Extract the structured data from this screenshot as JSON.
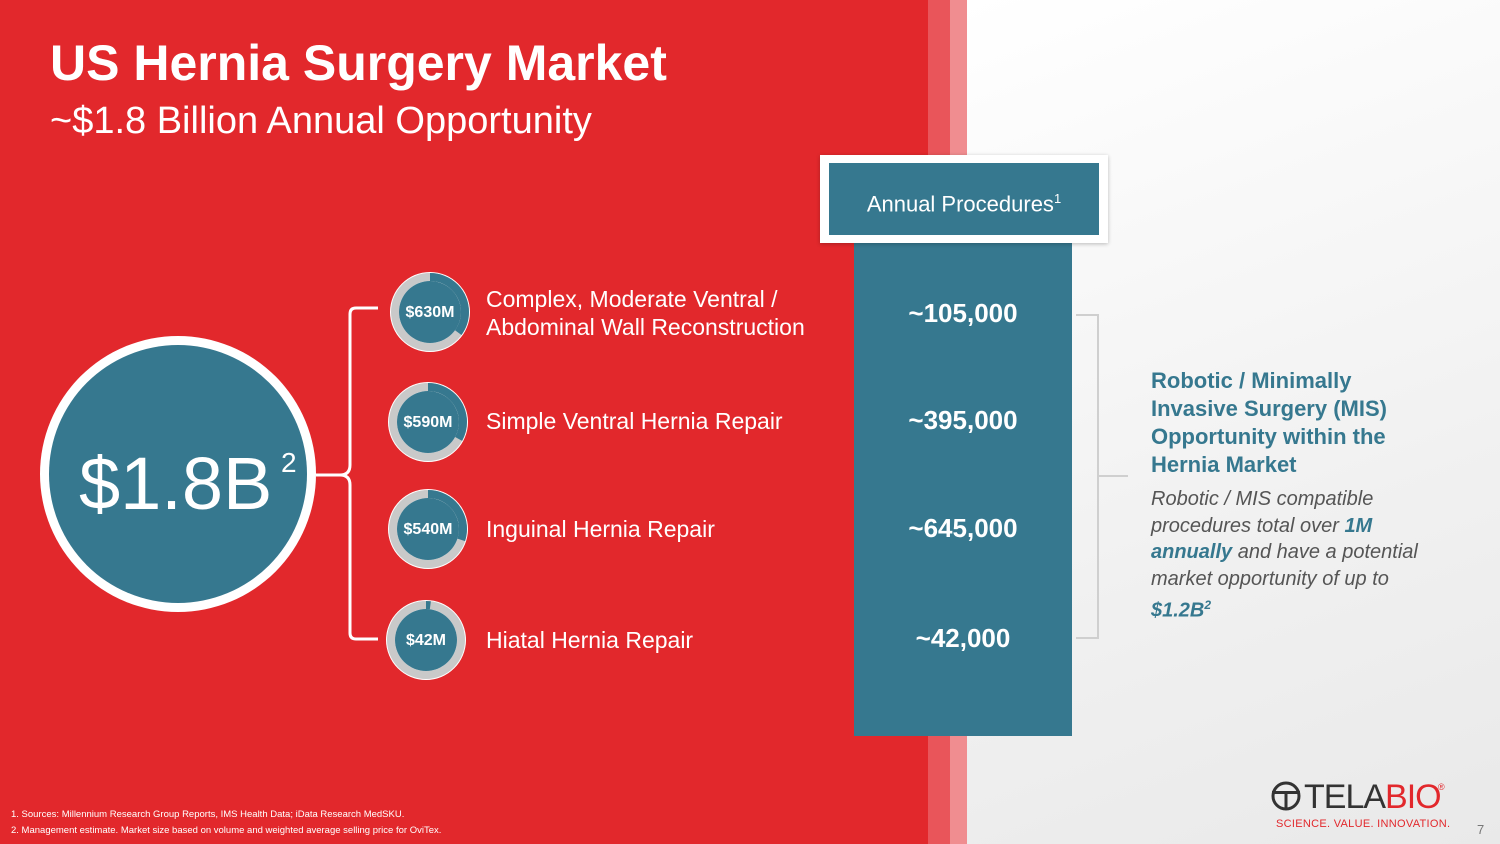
{
  "header": {
    "title": "US Hernia Surgery Market",
    "subtitle": "~$1.8 Billion Annual Opportunity"
  },
  "total": {
    "value": "$1.8B",
    "footnote_ref": "2"
  },
  "segments": [
    {
      "market_value": "$630M",
      "label_line1": "Complex, Moderate Ventral /",
      "label_line2": "Abdominal Wall Reconstruction",
      "procedures": "~105,000",
      "share_fraction": 0.35
    },
    {
      "market_value": "$590M",
      "label_line1": "Simple Ventral Hernia Repair",
      "label_line2": "",
      "procedures": "~395,000",
      "share_fraction": 0.33
    },
    {
      "market_value": "$540M",
      "label_line1": "Inguinal Hernia Repair",
      "label_line2": "",
      "procedures": "~645,000",
      "share_fraction": 0.3
    },
    {
      "market_value": "$42M",
      "label_line1": "Hiatal Hernia Repair",
      "label_line2": "",
      "procedures": "~42,000",
      "share_fraction": 0.02
    }
  ],
  "procedures_header": {
    "label": "Annual Procedures",
    "footnote_ref": "1"
  },
  "mis": {
    "title_line1": "Robotic / Minimally",
    "title_line2": "Invasive Surgery (MIS)",
    "title_line3": "Opportunity within the",
    "title_line4": "Hernia Market",
    "desc_part1": "Robotic / MIS compatible procedures total over ",
    "desc_highlight1": "1M annually",
    "desc_part2": " and have a potential market opportunity of up to ",
    "desc_highlight2": "$1.2B",
    "desc_footnote_ref": "2"
  },
  "logo": {
    "name_part1": "TELA",
    "name_part2": "BIO",
    "registered": "®",
    "tagline": "SCIENCE. VALUE. INNOVATION."
  },
  "page_number": "7",
  "footnotes": [
    "1. Sources: Millennium Research Group Reports, IMS Health Data; iData Research MedSKU.",
    "2. Management estimate. Market size based on volume and weighted average selling price for OviTex."
  ],
  "colors": {
    "brand_red": "#e2282c",
    "teal": "#36788f",
    "donut_track": "#c9c9c9"
  }
}
